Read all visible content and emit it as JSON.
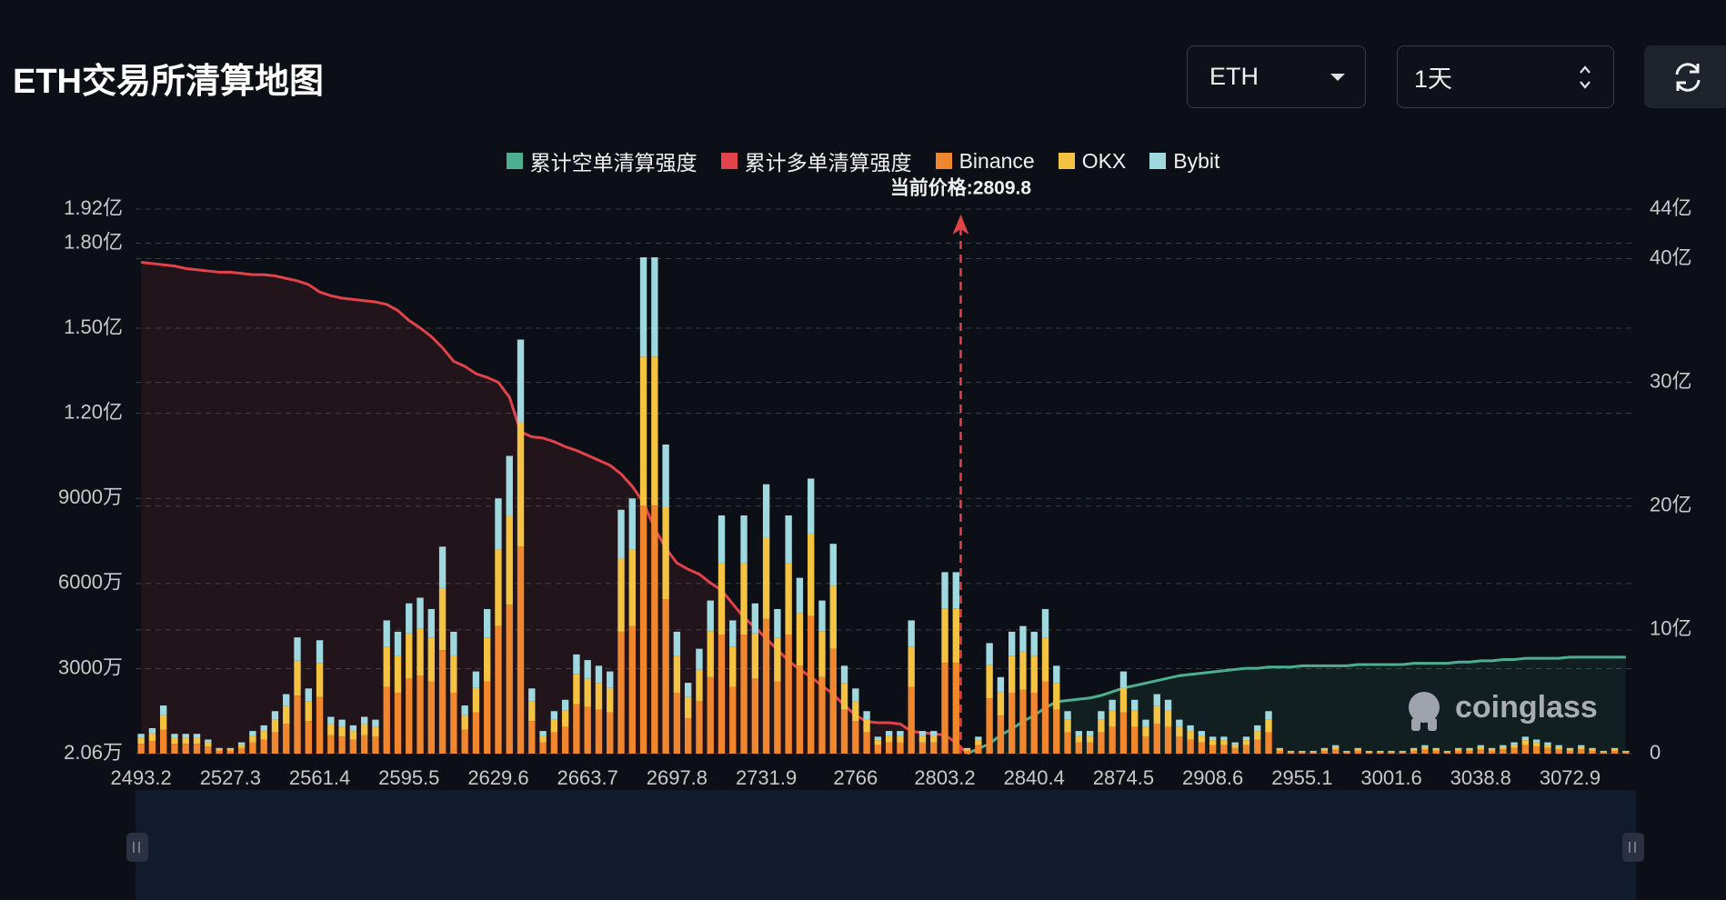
{
  "chart_data": {
    "type": "bar",
    "title": "ETH交易所清算地图",
    "controls": {
      "coin": "ETH",
      "period": "1天"
    },
    "watermark": "coinglass",
    "stacked": true,
    "grid": true,
    "categories": [
      "2493.2",
      null,
      null,
      null,
      null,
      null,
      null,
      null,
      "2527.3",
      null,
      null,
      null,
      null,
      null,
      null,
      null,
      "2561.4",
      null,
      null,
      null,
      null,
      null,
      null,
      null,
      "2595.5",
      null,
      null,
      null,
      null,
      null,
      null,
      null,
      "2629.6",
      null,
      null,
      null,
      null,
      null,
      null,
      null,
      "2663.7",
      null,
      null,
      null,
      null,
      null,
      null,
      null,
      "2697.8",
      null,
      null,
      null,
      null,
      null,
      null,
      null,
      "2731.9",
      null,
      null,
      null,
      null,
      null,
      null,
      null,
      "2766",
      null,
      null,
      null,
      null,
      null,
      null,
      null,
      "2803.2",
      null,
      null,
      null,
      null,
      null,
      null,
      null,
      "2840.4",
      null,
      null,
      null,
      null,
      null,
      null,
      null,
      "2874.5",
      null,
      null,
      null,
      null,
      null,
      null,
      null,
      "2908.6",
      null,
      null,
      null,
      null,
      null,
      null,
      null,
      "2955.1",
      null,
      null,
      null,
      null,
      null,
      null,
      null,
      "3001.6",
      null,
      null,
      null,
      null,
      null,
      null,
      null,
      "3038.8",
      null,
      null,
      null,
      null,
      null,
      null,
      null,
      "3072.9",
      null,
      null,
      null,
      null,
      null
    ],
    "ylim": [
      2.06,
      19200
    ],
    "yticks": [
      {
        "value": 2.06,
        "label": "2.06万"
      },
      {
        "value": 3000,
        "label": "3000万"
      },
      {
        "value": 6000,
        "label": "6000万"
      },
      {
        "value": 9000,
        "label": "9000万"
      },
      {
        "value": 12000,
        "label": "1.20亿"
      },
      {
        "value": 15000,
        "label": "1.50亿"
      },
      {
        "value": 18000,
        "label": "1.80亿"
      },
      {
        "value": 19200,
        "label": "1.92亿"
      }
    ],
    "y2lim": [
      0,
      44
    ],
    "y2ticks": [
      0,
      {
        "value": 10,
        "label": "10亿"
      },
      {
        "value": 20,
        "label": "20亿"
      },
      {
        "value": 30,
        "label": "30亿"
      },
      {
        "value": 40,
        "label": "40亿"
      },
      {
        "value": 44,
        "label": "44亿"
      }
    ],
    "annotations": [
      {
        "text": "当前价格:2809.8",
        "x": 2809.8,
        "color": "#e2434b"
      }
    ],
    "series": [
      {
        "name": "累计空单清算强度",
        "type": "area",
        "axis": "y2",
        "color": "#4caf8f",
        "values": [
          null,
          null,
          null,
          null,
          null,
          null,
          null,
          null,
          null,
          null,
          null,
          null,
          null,
          null,
          null,
          null,
          null,
          null,
          null,
          null,
          null,
          null,
          null,
          null,
          null,
          null,
          null,
          null,
          null,
          null,
          null,
          null,
          null,
          null,
          null,
          null,
          null,
          null,
          null,
          null,
          null,
          null,
          null,
          null,
          null,
          null,
          null,
          null,
          null,
          null,
          null,
          null,
          null,
          null,
          null,
          null,
          null,
          null,
          null,
          null,
          null,
          null,
          null,
          null,
          null,
          null,
          null,
          null,
          null,
          null,
          null,
          null,
          null,
          null,
          0,
          0.4,
          0.8,
          1.5,
          2.0,
          2.6,
          3.1,
          3.7,
          4.2,
          4.3,
          4.4,
          4.5,
          4.7,
          5.0,
          5.3,
          5.5,
          5.7,
          5.9,
          6.1,
          6.3,
          6.4,
          6.5,
          6.6,
          6.7,
          6.8,
          6.9,
          6.9,
          7.0,
          7.0,
          7.0,
          7.1,
          7.1,
          7.1,
          7.1,
          7.1,
          7.2,
          7.2,
          7.2,
          7.2,
          7.2,
          7.3,
          7.3,
          7.3,
          7.3,
          7.4,
          7.4,
          7.5,
          7.5,
          7.6,
          7.6,
          7.7,
          7.7,
          7.7,
          7.7,
          7.8,
          7.8,
          7.8,
          7.8,
          7.8,
          7.8
        ]
      },
      {
        "name": "累计多单清算强度",
        "type": "area",
        "axis": "y2",
        "color": "#e2434b",
        "values": [
          39.7,
          39.6,
          39.5,
          39.4,
          39.2,
          39.1,
          39.0,
          38.9,
          38.9,
          38.8,
          38.7,
          38.7,
          38.6,
          38.4,
          38.2,
          37.9,
          37.3,
          37.0,
          36.8,
          36.7,
          36.6,
          36.5,
          36.3,
          35.8,
          35.0,
          34.4,
          33.7,
          32.8,
          31.7,
          31.3,
          30.7,
          30.4,
          30.0,
          28.8,
          26.0,
          25.6,
          25.5,
          25.2,
          24.8,
          24.5,
          24.1,
          23.7,
          23.3,
          22.6,
          21.6,
          20.3,
          18.2,
          16.6,
          15.4,
          14.9,
          14.5,
          13.8,
          13.2,
          12.1,
          11.0,
          10.2,
          9.3,
          8.4,
          7.5,
          6.8,
          6.2,
          5.5,
          4.8,
          3.9,
          3.1,
          2.6,
          2.5,
          2.5,
          2.4,
          1.8,
          1.7,
          1.6,
          1.5,
          0.9,
          0,
          null,
          null,
          null,
          null,
          null,
          null,
          null,
          null,
          null,
          null,
          null,
          null,
          null,
          null,
          null,
          null,
          null,
          null,
          null,
          null,
          null,
          null,
          null,
          null,
          null,
          null,
          null,
          null,
          null,
          null,
          null,
          null,
          null,
          null,
          null,
          null,
          null,
          null,
          null,
          null,
          null,
          null,
          null,
          null,
          null,
          null,
          null,
          null,
          null,
          null,
          null,
          null,
          null,
          null,
          null,
          null,
          null,
          null,
          null
        ]
      },
      {
        "name": "Binance",
        "type": "bar",
        "color": "#f0862e",
        "values": [
          350,
          450,
          850,
          350,
          350,
          350,
          250,
          100,
          100,
          200,
          400,
          500,
          750,
          1050,
          2050,
          1150,
          2000,
          650,
          600,
          500,
          650,
          600,
          2350,
          2150,
          2650,
          2750,
          2550,
          3650,
          2150,
          850,
          1450,
          2550,
          4500,
          5250,
          7300,
          1150,
          400,
          750,
          950,
          1750,
          1650,
          1550,
          1450,
          4300,
          4500,
          8750,
          8750,
          5450,
          2150,
          1250,
          1850,
          2700,
          4200,
          2350,
          4200,
          2650,
          4750,
          2550,
          4200,
          3100,
          4850,
          2700,
          3700,
          1550,
          1150,
          750,
          300,
          400,
          400,
          2350,
          400,
          400,
          3200,
          3200,
          100,
          300,
          1950,
          1350,
          2150,
          2250,
          2150,
          2550,
          1550,
          750,
          400,
          400,
          750,
          950,
          1450,
          950,
          600,
          1050,
          950,
          600,
          500,
          400,
          300,
          300,
          200,
          300,
          500,
          750,
          100,
          50,
          50,
          50,
          100,
          150,
          50,
          100,
          50,
          50,
          50,
          50,
          100,
          150,
          100,
          50,
          100,
          100,
          150,
          100,
          150,
          200,
          300,
          250,
          200,
          150,
          100,
          150,
          100,
          50,
          100,
          50
        ]
      },
      {
        "name": "OKX",
        "type": "bar",
        "color": "#f5c342",
        "values": [
          210,
          270,
          510,
          210,
          210,
          210,
          150,
          60,
          60,
          120,
          240,
          300,
          450,
          630,
          1230,
          690,
          1200,
          390,
          360,
          300,
          390,
          360,
          1410,
          1290,
          1590,
          1650,
          1530,
          2190,
          1290,
          510,
          870,
          1530,
          2700,
          3150,
          4380,
          690,
          240,
          450,
          570,
          1050,
          990,
          930,
          870,
          2580,
          2700,
          5250,
          5250,
          3270,
          1290,
          750,
          1110,
          1620,
          2520,
          1410,
          2520,
          1590,
          2850,
          1530,
          2520,
          1860,
          2910,
          1620,
          2220,
          930,
          690,
          450,
          180,
          240,
          240,
          1410,
          240,
          240,
          1920,
          1920,
          60,
          180,
          1170,
          810,
          1290,
          1350,
          1290,
          1530,
          930,
          450,
          240,
          240,
          450,
          570,
          870,
          570,
          360,
          630,
          570,
          360,
          300,
          240,
          180,
          180,
          120,
          180,
          300,
          450,
          60,
          30,
          30,
          30,
          60,
          90,
          30,
          60,
          30,
          30,
          30,
          30,
          60,
          90,
          60,
          30,
          60,
          60,
          90,
          60,
          90,
          120,
          180,
          150,
          120,
          90,
          60,
          90,
          60,
          30,
          60,
          30
        ]
      },
      {
        "name": "Bybit",
        "type": "bar",
        "color": "#9fd8df",
        "values": [
          140,
          180,
          340,
          140,
          140,
          140,
          100,
          40,
          40,
          80,
          160,
          200,
          300,
          420,
          820,
          460,
          800,
          260,
          240,
          200,
          260,
          240,
          940,
          860,
          1060,
          1100,
          1020,
          1460,
          860,
          340,
          580,
          1020,
          1800,
          2100,
          2920,
          460,
          160,
          300,
          380,
          700,
          660,
          620,
          580,
          1720,
          1800,
          3500,
          3500,
          2180,
          860,
          500,
          740,
          1080,
          1680,
          940,
          1680,
          1060,
          1900,
          1020,
          1680,
          1240,
          1940,
          1080,
          1480,
          620,
          460,
          300,
          120,
          160,
          160,
          940,
          160,
          160,
          1280,
          1280,
          40,
          120,
          780,
          540,
          860,
          900,
          860,
          1020,
          620,
          300,
          160,
          160,
          300,
          380,
          580,
          380,
          240,
          420,
          380,
          240,
          200,
          160,
          120,
          120,
          80,
          120,
          200,
          300,
          40,
          20,
          20,
          20,
          40,
          60,
          20,
          40,
          20,
          20,
          20,
          20,
          40,
          60,
          40,
          20,
          40,
          40,
          60,
          40,
          60,
          80,
          120,
          100,
          80,
          60,
          40,
          60,
          40,
          20,
          40,
          20
        ]
      }
    ]
  }
}
